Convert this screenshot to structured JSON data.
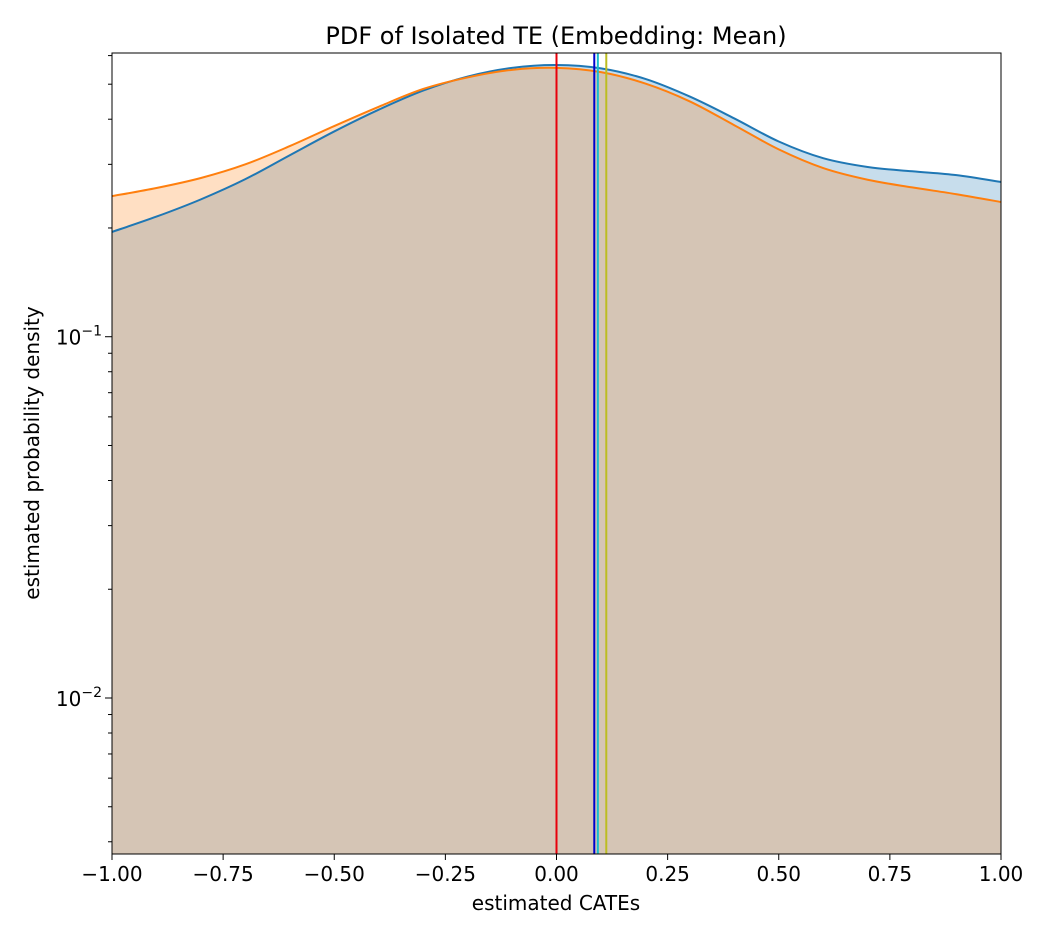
{
  "chart_data": {
    "type": "area",
    "title": "PDF of Isolated TE (Embedding: Mean)",
    "xlabel": "estimated CATEs",
    "ylabel": "estimated probability density",
    "xlim": [
      -1.0,
      1.0
    ],
    "ylim": [
      0.0037,
      0.61
    ],
    "y_scale": "log",
    "grid": false,
    "x_ticks": [
      -1.0,
      -0.75,
      -0.5,
      -0.25,
      0.0,
      0.25,
      0.5,
      0.75,
      1.0
    ],
    "x_tick_labels": [
      "−1.00",
      "−0.75",
      "−0.50",
      "−0.25",
      "0.00",
      "0.25",
      "0.50",
      "0.75",
      "1.00"
    ],
    "y_major_ticks": [
      {
        "value": 0.01,
        "base": "10",
        "exp": "−2"
      },
      {
        "value": 0.1,
        "base": "10",
        "exp": "−1"
      }
    ],
    "y_minor_ticks": [
      0.004,
      0.005,
      0.006,
      0.007,
      0.008,
      0.009,
      0.02,
      0.03,
      0.04,
      0.05,
      0.06,
      0.07,
      0.08,
      0.09,
      0.2,
      0.3,
      0.4,
      0.5,
      0.6
    ],
    "series": [
      {
        "color": "#1f77b4",
        "fill": "#1f77b4",
        "fill_opacity": 0.25,
        "x": [
          -1.0,
          -0.9,
          -0.8,
          -0.7,
          -0.6,
          -0.5,
          -0.4,
          -0.3,
          -0.2,
          -0.1,
          0.0,
          0.1,
          0.2,
          0.3,
          0.4,
          0.5,
          0.6,
          0.7,
          0.8,
          0.9,
          1.0
        ],
        "y": [
          0.195,
          0.215,
          0.24,
          0.273,
          0.318,
          0.37,
          0.425,
          0.48,
          0.525,
          0.555,
          0.565,
          0.553,
          0.517,
          0.462,
          0.402,
          0.347,
          0.312,
          0.295,
          0.287,
          0.28,
          0.268
        ]
      },
      {
        "color": "#ff7f0e",
        "fill": "#ff7f0e",
        "fill_opacity": 0.25,
        "x": [
          -1.0,
          -0.9,
          -0.8,
          -0.7,
          -0.6,
          -0.5,
          -0.4,
          -0.3,
          -0.2,
          -0.1,
          0.0,
          0.1,
          0.2,
          0.3,
          0.4,
          0.5,
          0.6,
          0.7,
          0.8,
          0.9,
          1.0
        ],
        "y": [
          0.245,
          0.258,
          0.275,
          0.3,
          0.337,
          0.383,
          0.433,
          0.485,
          0.522,
          0.548,
          0.555,
          0.54,
          0.502,
          0.448,
          0.385,
          0.33,
          0.293,
          0.272,
          0.259,
          0.248,
          0.236
        ]
      }
    ],
    "vlines": [
      {
        "x": 0.0,
        "color": "#e8000b"
      },
      {
        "x": 0.085,
        "color": "#0000cc"
      },
      {
        "x": 0.093,
        "color": "#17becf"
      },
      {
        "x": 0.112,
        "color": "#bcbd22"
      }
    ]
  }
}
